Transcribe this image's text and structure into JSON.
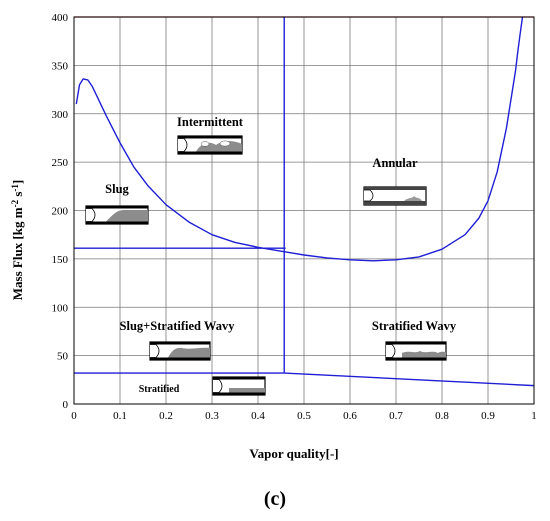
{
  "chart_data": {
    "type": "line",
    "panel_label": "(c)",
    "xlabel": "Vapor quality[-]",
    "ylabel_main": "Mass Flux [kg m",
    "ylabel_sup1": "-2",
    "ylabel_mid": " s",
    "ylabel_sup2": "-1",
    "ylabel_end": "]",
    "xlim": [
      0,
      1
    ],
    "ylim": [
      0,
      400
    ],
    "x_ticks": [
      "0",
      "0.1",
      "0.2",
      "0.3",
      "0.4",
      "0.5",
      "0.6",
      "0.7",
      "0.8",
      "0.9",
      "1"
    ],
    "y_ticks": [
      "0",
      "50",
      "100",
      "150",
      "200",
      "250",
      "300",
      "350",
      "400"
    ],
    "grid": true,
    "series_color": "#1f1fd6",
    "top_line_color": "#d63a3a",
    "series": [
      {
        "role": "intermittent-annular boundary",
        "x": [
          0.005,
          0.012,
          0.02,
          0.03,
          0.04,
          0.05,
          0.07,
          0.1,
          0.13,
          0.16,
          0.2,
          0.25,
          0.3,
          0.35,
          0.4,
          0.45,
          0.5,
          0.55,
          0.6,
          0.65,
          0.7,
          0.75,
          0.8,
          0.85,
          0.88,
          0.9,
          0.92,
          0.94,
          0.95,
          0.96,
          0.965,
          0.97,
          0.975
        ],
        "y": [
          310,
          330,
          336,
          335,
          328,
          318,
          298,
          270,
          245,
          226,
          206,
          188,
          175,
          167,
          162,
          158,
          154,
          151,
          149,
          148,
          149,
          152,
          160,
          175,
          192,
          210,
          240,
          285,
          315,
          345,
          365,
          383,
          400
        ]
      },
      {
        "role": "slug-intermittent / stratified-wavy boundary",
        "x": [
          0,
          0.46
        ],
        "y": [
          161,
          161
        ]
      },
      {
        "role": "intermittent-annular transition quality",
        "x": [
          0.457,
          0.457
        ],
        "y": [
          32,
          400
        ]
      },
      {
        "role": "stratified boundary (left)",
        "x": [
          0,
          0.457
        ],
        "y": [
          32,
          32
        ]
      },
      {
        "role": "stratified boundary (right)",
        "x": [
          0.457,
          1.0
        ],
        "y": [
          32,
          19
        ]
      }
    ],
    "regions": {
      "intermittent": "Intermittent",
      "slug": "Slug",
      "annular": "Annular",
      "slug_stratified_wavy": "Slug+Stratified Wavy",
      "stratified_wavy": "Stratified Wavy",
      "stratified": "Stratified"
    }
  }
}
